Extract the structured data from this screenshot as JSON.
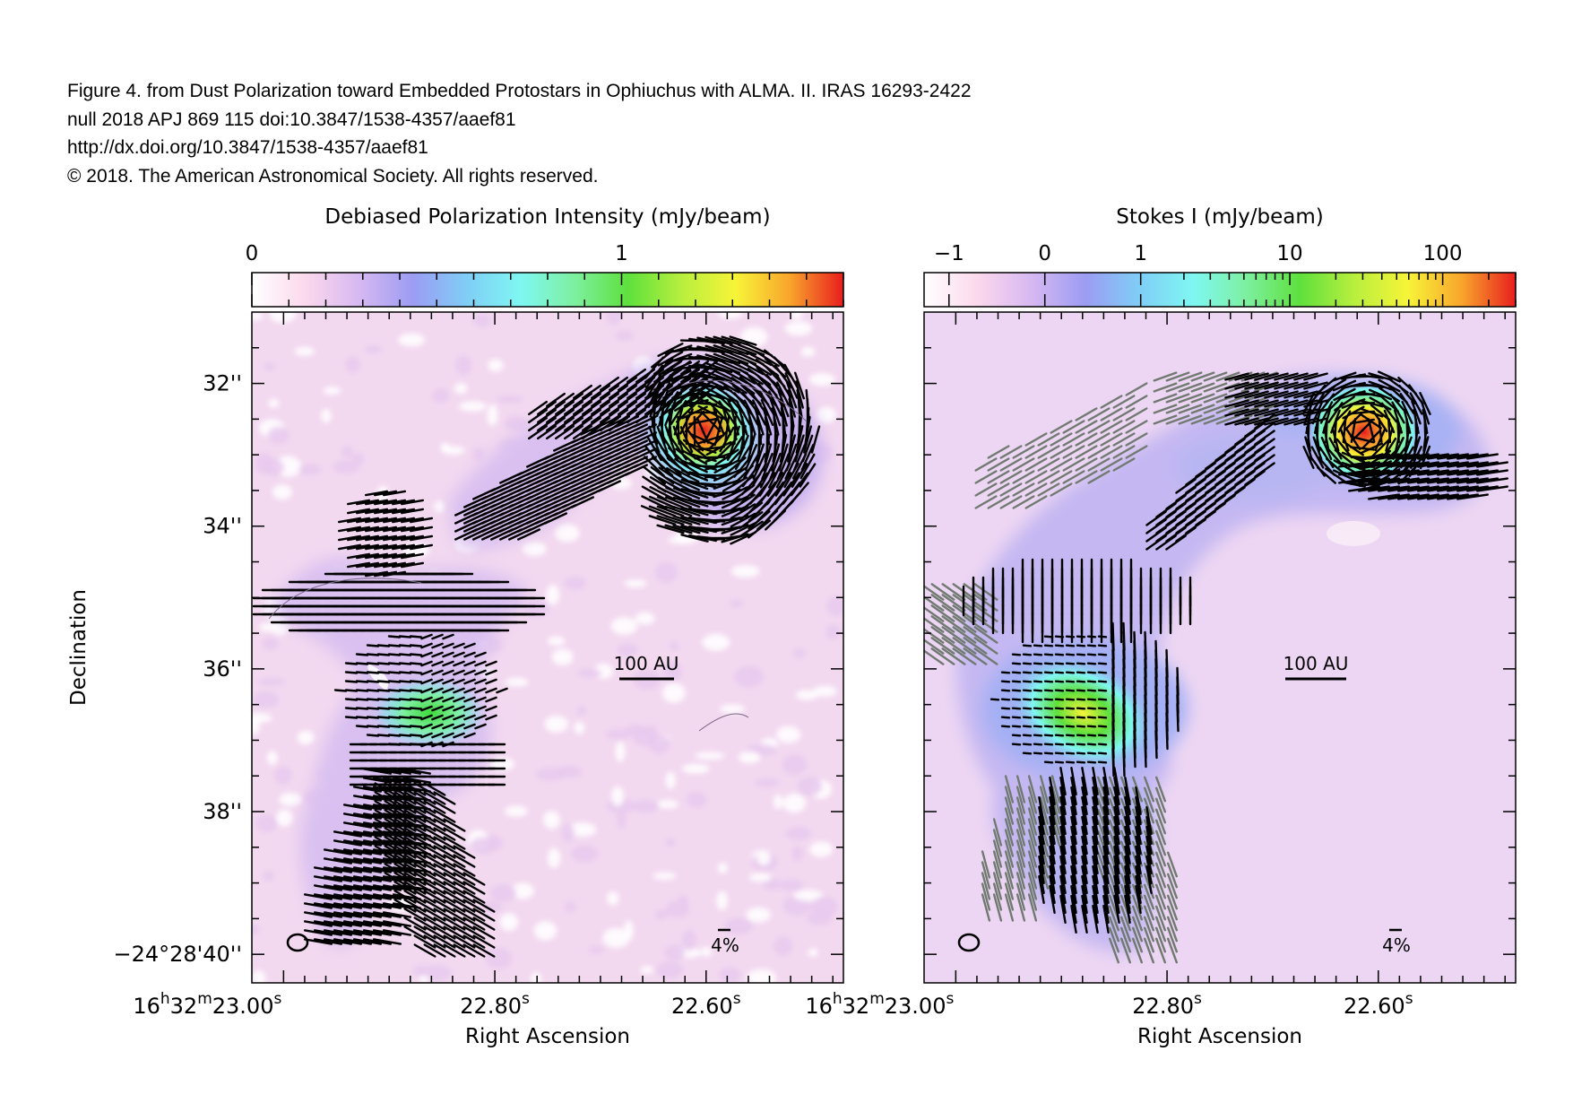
{
  "caption": {
    "line1": "Figure 4. from Dust Polarization toward Embedded Protostars in Ophiuchus with ALMA. II. IRAS 16293-2422",
    "line2": "null 2018 APJ 869 115 doi:10.3847/1538-4357/aaef81",
    "line3": "http://dx.doi.org/10.3847/1538-4357/aaef81",
    "line4": "© 2018. The American Astronomical Society. All rights reserved."
  },
  "colors": {
    "colormap": [
      "#ffffff",
      "#fbd8ec",
      "#d6b8f2",
      "#9c9cf3",
      "#7fcef6",
      "#7ff7f2",
      "#7df0a0",
      "#5fe03d",
      "#b8ef3e",
      "#f7f438",
      "#f8a52c",
      "#e81e1e"
    ],
    "background": "#f3d9f0",
    "vector_black": "#000000",
    "vector_gray": "#707a70"
  },
  "chart_data": [
    {
      "type": "heatmap",
      "panel": "left",
      "colorbar_title": "Debiased Polarization Intensity (mJy/beam)",
      "colorbar_scale": "linear",
      "colorbar_range": [
        0,
        1.6
      ],
      "colorbar_ticks": [
        {
          "value": 0,
          "label": "0"
        },
        {
          "value": 1,
          "label": "1"
        }
      ],
      "xlabel": "Right Ascension",
      "ylabel": "Declination",
      "xlim_seconds": [
        23.03,
        22.47
      ],
      "ylim_arcsec_offset": [
        31.0,
        40.4
      ],
      "x_tick_labels": [
        {
          "value": 23.0,
          "h": "16",
          "m": "32",
          "s": "23.00"
        },
        {
          "value": 22.8,
          "s": "22.80"
        },
        {
          "value": 22.6,
          "s": "22.60"
        }
      ],
      "y_tick_labels": [
        {
          "value": 32,
          "label": "32''"
        },
        {
          "value": 34,
          "label": "34''"
        },
        {
          "value": 36,
          "label": "36''"
        },
        {
          "value": 38,
          "label": "38''"
        },
        {
          "value": 40,
          "label": "−24°28'40''"
        }
      ],
      "scale_bar_label": "100 AU",
      "vector_scale_label": "4%",
      "peaks": [
        {
          "name": "northeast source peak",
          "ra_s": 22.61,
          "dec_arcsec": 32.6,
          "value": 1.55
        },
        {
          "name": "southern peak",
          "ra_s": 22.88,
          "dec_arcsec": 36.6,
          "value": 0.9
        }
      ]
    },
    {
      "type": "heatmap",
      "panel": "right",
      "colorbar_title": "Stokes I (mJy/beam)",
      "colorbar_scale": "log",
      "colorbar_range": [
        -1.5,
        300
      ],
      "colorbar_ticks": [
        {
          "value": -1,
          "label": "−1"
        },
        {
          "value": 0,
          "label": "0"
        },
        {
          "value": 1,
          "label": "1"
        },
        {
          "value": 10,
          "label": "10"
        },
        {
          "value": 100,
          "label": "100"
        }
      ],
      "xlabel": "Right Ascension",
      "xlim_seconds": [
        23.03,
        22.47
      ],
      "ylim_arcsec_offset": [
        31.0,
        40.4
      ],
      "x_tick_labels": [
        {
          "value": 23.0,
          "h": "16",
          "m": "32",
          "s": "23.00"
        },
        {
          "value": 22.8,
          "s": "22.80"
        },
        {
          "value": 22.6,
          "s": "22.60"
        }
      ],
      "scale_bar_label": "100 AU",
      "vector_scale_label": "4%",
      "peaks": [
        {
          "name": "northeast source peak",
          "ra_s": 22.61,
          "dec_arcsec": 32.6,
          "value": 300
        },
        {
          "name": "southern peak",
          "ra_s": 22.88,
          "dec_arcsec": 36.7,
          "value": 60
        }
      ]
    }
  ]
}
